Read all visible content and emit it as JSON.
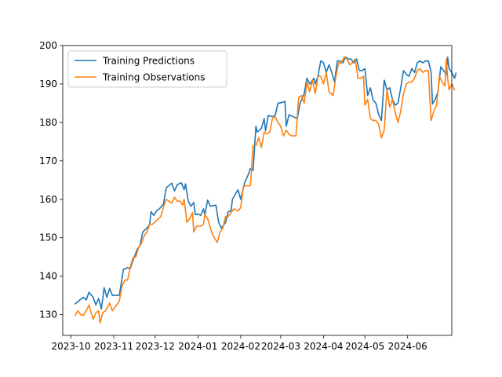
{
  "chart_data": {
    "type": "line",
    "title": "",
    "xlabel": "",
    "ylabel": "",
    "ylim": [
      124.6,
      200.0
    ],
    "xlim": [
      "2023-09-25",
      "2024-07-03"
    ],
    "grid": false,
    "legend_position": "top-left",
    "y_ticks": [
      130,
      140,
      150,
      160,
      170,
      180,
      190,
      200
    ],
    "x_ticks": [
      {
        "date": "2023-10-01",
        "label": "2023-10"
      },
      {
        "date": "2023-11-01",
        "label": "2023-11"
      },
      {
        "date": "2023-12-01",
        "label": "2023-12"
      },
      {
        "date": "2024-01-01",
        "label": "2024-01"
      },
      {
        "date": "2024-02-01",
        "label": "2024-02"
      },
      {
        "date": "2024-03-01",
        "label": "2024-03"
      },
      {
        "date": "2024-04-01",
        "label": "2024-04"
      },
      {
        "date": "2024-05-01",
        "label": "2024-05"
      },
      {
        "date": "2024-06-01",
        "label": "2024-06"
      }
    ],
    "series": [
      {
        "name": "Training Predictions",
        "color": "#1f77b4",
        "points": [
          [
            "2023-10-04",
            132.8
          ],
          [
            "2023-10-08",
            134.0
          ],
          [
            "2023-10-10",
            134.5
          ],
          [
            "2023-10-12",
            133.8
          ],
          [
            "2023-10-14",
            135.8
          ],
          [
            "2023-10-17",
            134.5
          ],
          [
            "2023-10-19",
            132.5
          ],
          [
            "2023-10-21",
            134.2
          ],
          [
            "2023-10-23",
            131.5
          ],
          [
            "2023-10-25",
            137.0
          ],
          [
            "2023-10-27",
            134.5
          ],
          [
            "2023-10-29",
            136.8
          ],
          [
            "2023-10-31",
            135.0
          ],
          [
            "2023-11-02",
            135.0
          ],
          [
            "2023-11-05",
            135.0
          ],
          [
            "2023-11-08",
            141.8
          ],
          [
            "2023-11-11",
            142.2
          ],
          [
            "2023-11-13",
            142.0
          ],
          [
            "2023-11-15",
            144.2
          ],
          [
            "2023-11-18",
            147.0
          ],
          [
            "2023-11-20",
            148.0
          ],
          [
            "2023-11-22",
            151.5
          ],
          [
            "2023-11-25",
            152.5
          ],
          [
            "2023-11-27",
            153.5
          ],
          [
            "2023-11-28",
            156.8
          ],
          [
            "2023-11-30",
            155.8
          ],
          [
            "2023-12-02",
            157.0
          ],
          [
            "2023-12-04",
            157.5
          ],
          [
            "2023-12-07",
            158.8
          ],
          [
            "2023-12-09",
            163.0
          ],
          [
            "2023-12-13",
            164.2
          ],
          [
            "2023-12-15",
            162.2
          ],
          [
            "2023-12-17",
            163.8
          ],
          [
            "2023-12-20",
            164.3
          ],
          [
            "2023-12-22",
            162.5
          ],
          [
            "2023-12-23",
            164.0
          ],
          [
            "2023-12-25",
            159.5
          ],
          [
            "2023-12-27",
            158.2
          ],
          [
            "2023-12-29",
            159.2
          ],
          [
            "2023-12-30",
            156.0
          ],
          [
            "2024-01-01",
            156.2
          ],
          [
            "2024-01-03",
            155.8
          ],
          [
            "2024-01-05",
            157.5
          ],
          [
            "2024-01-06",
            156.0
          ],
          [
            "2024-01-08",
            159.8
          ],
          [
            "2024-01-10",
            158.2
          ],
          [
            "2024-01-14",
            158.5
          ],
          [
            "2024-01-16",
            154.0
          ],
          [
            "2024-01-18",
            152.5
          ],
          [
            "2024-01-21",
            154.0
          ],
          [
            "2024-01-23",
            156.8
          ],
          [
            "2024-01-25",
            157.0
          ],
          [
            "2024-01-26",
            160.0
          ],
          [
            "2024-01-30",
            162.5
          ],
          [
            "2024-02-01",
            160.0
          ],
          [
            "2024-02-04",
            164.5
          ],
          [
            "2024-02-06",
            166.0
          ],
          [
            "2024-02-08",
            168.0
          ],
          [
            "2024-02-10",
            167.5
          ],
          [
            "2024-02-12",
            179.0
          ],
          [
            "2024-02-13",
            177.5
          ],
          [
            "2024-02-16",
            178.5
          ],
          [
            "2024-02-18",
            181.0
          ],
          [
            "2024-02-19",
            177.8
          ],
          [
            "2024-02-21",
            181.8
          ],
          [
            "2024-02-24",
            181.5
          ],
          [
            "2024-02-26",
            181.8
          ],
          [
            "2024-02-28",
            185.0
          ],
          [
            "2024-03-02",
            185.2
          ],
          [
            "2024-03-04",
            185.5
          ],
          [
            "2024-03-05",
            179.0
          ],
          [
            "2024-03-07",
            182.0
          ],
          [
            "2024-03-10",
            181.5
          ],
          [
            "2024-03-13",
            181.0
          ],
          [
            "2024-03-15",
            185.0
          ],
          [
            "2024-03-18",
            187.5
          ],
          [
            "2024-03-20",
            191.5
          ],
          [
            "2024-03-22",
            190.0
          ],
          [
            "2024-03-25",
            191.5
          ],
          [
            "2024-03-26",
            190.0
          ],
          [
            "2024-03-28",
            192.0
          ],
          [
            "2024-03-30",
            196.0
          ],
          [
            "2024-04-01",
            195.5
          ],
          [
            "2024-04-03",
            193.0
          ],
          [
            "2024-04-05",
            195.0
          ],
          [
            "2024-04-07",
            193.0
          ],
          [
            "2024-04-09",
            190.5
          ],
          [
            "2024-04-11",
            196.0
          ],
          [
            "2024-04-13",
            196.0
          ],
          [
            "2024-04-15",
            195.5
          ],
          [
            "2024-04-17",
            197.0
          ],
          [
            "2024-04-19",
            196.5
          ],
          [
            "2024-04-21",
            196.5
          ],
          [
            "2024-04-23",
            195.5
          ],
          [
            "2024-04-25",
            196.5
          ],
          [
            "2024-04-27",
            193.5
          ],
          [
            "2024-04-29",
            193.5
          ],
          [
            "2024-05-01",
            194.0
          ],
          [
            "2024-05-03",
            187.0
          ],
          [
            "2024-05-05",
            189.0
          ],
          [
            "2024-05-07",
            185.8
          ],
          [
            "2024-05-09",
            185.0
          ],
          [
            "2024-05-11",
            182.0
          ],
          [
            "2024-05-13",
            180.5
          ],
          [
            "2024-05-15",
            191.0
          ],
          [
            "2024-05-17",
            188.5
          ],
          [
            "2024-05-19",
            189.0
          ],
          [
            "2024-05-21",
            186.0
          ],
          [
            "2024-05-23",
            184.5
          ],
          [
            "2024-05-25",
            185.0
          ],
          [
            "2024-05-27",
            189.0
          ],
          [
            "2024-05-29",
            193.5
          ],
          [
            "2024-05-31",
            192.5
          ],
          [
            "2024-06-02",
            192.0
          ],
          [
            "2024-06-04",
            194.0
          ],
          [
            "2024-06-06",
            193.0
          ],
          [
            "2024-06-08",
            195.5
          ],
          [
            "2024-06-10",
            196.0
          ],
          [
            "2024-06-12",
            195.5
          ],
          [
            "2024-06-14",
            196.0
          ],
          [
            "2024-06-16",
            196.0
          ],
          [
            "2024-06-18",
            193.0
          ],
          [
            "2024-06-19",
            184.8
          ],
          [
            "2024-06-21",
            186.0
          ],
          [
            "2024-06-23",
            188.0
          ],
          [
            "2024-06-25",
            194.5
          ],
          [
            "2024-06-27",
            193.5
          ],
          [
            "2024-06-29",
            192.5
          ],
          [
            "2024-06-30",
            197.0
          ],
          [
            "2024-07-01",
            194.0
          ],
          [
            "2024-07-03",
            193.0
          ],
          [
            "2024-07-05",
            191.5
          ],
          [
            "2024-07-06",
            192.8
          ]
        ]
      },
      {
        "name": "Training Observations",
        "color": "#ff7f0e",
        "points": [
          [
            "2023-10-04",
            129.8
          ],
          [
            "2023-10-06",
            131.0
          ],
          [
            "2023-10-08",
            130.0
          ],
          [
            "2023-10-10",
            129.8
          ],
          [
            "2023-10-12",
            131.0
          ],
          [
            "2023-10-14",
            132.5
          ],
          [
            "2023-10-17",
            128.8
          ],
          [
            "2023-10-19",
            130.5
          ],
          [
            "2023-10-21",
            131.0
          ],
          [
            "2023-10-22",
            127.8
          ],
          [
            "2023-10-24",
            130.5
          ],
          [
            "2023-10-26",
            131.0
          ],
          [
            "2023-10-29",
            133.0
          ],
          [
            "2023-10-31",
            131.0
          ],
          [
            "2023-11-02",
            132.0
          ],
          [
            "2023-11-05",
            133.5
          ],
          [
            "2023-11-07",
            137.5
          ],
          [
            "2023-11-09",
            139.0
          ],
          [
            "2023-11-11",
            139.0
          ],
          [
            "2023-11-13",
            142.5
          ],
          [
            "2023-11-15",
            144.8
          ],
          [
            "2023-11-17",
            145.0
          ],
          [
            "2023-11-19",
            147.5
          ],
          [
            "2023-11-21",
            148.5
          ],
          [
            "2023-11-23",
            150.5
          ],
          [
            "2023-11-25",
            151.5
          ],
          [
            "2023-11-27",
            153.5
          ],
          [
            "2023-11-29",
            153.5
          ],
          [
            "2023-12-02",
            154.5
          ],
          [
            "2023-12-05",
            155.5
          ],
          [
            "2023-12-07",
            158.0
          ],
          [
            "2023-12-09",
            160.0
          ],
          [
            "2023-12-11",
            159.5
          ],
          [
            "2023-12-13",
            159.0
          ],
          [
            "2023-12-15",
            160.5
          ],
          [
            "2023-12-17",
            159.5
          ],
          [
            "2023-12-19",
            159.5
          ],
          [
            "2023-12-21",
            158.5
          ],
          [
            "2023-12-22",
            160.0
          ],
          [
            "2023-12-24",
            154.0
          ],
          [
            "2023-12-26",
            155.0
          ],
          [
            "2023-12-28",
            156.5
          ],
          [
            "2023-12-29",
            151.5
          ],
          [
            "2023-12-31",
            153.0
          ],
          [
            "2024-01-03",
            153.0
          ],
          [
            "2024-01-05",
            153.5
          ],
          [
            "2024-01-06",
            156.0
          ],
          [
            "2024-01-08",
            155.0
          ],
          [
            "2024-01-10",
            152.5
          ],
          [
            "2024-01-12",
            150.5
          ],
          [
            "2024-01-15",
            148.8
          ],
          [
            "2024-01-17",
            151.5
          ],
          [
            "2024-01-19",
            152.5
          ],
          [
            "2024-01-21",
            155.5
          ],
          [
            "2024-01-23",
            155.5
          ],
          [
            "2024-01-25",
            156.5
          ],
          [
            "2024-01-27",
            157.5
          ],
          [
            "2024-01-30",
            157.0
          ],
          [
            "2024-02-01",
            157.8
          ],
          [
            "2024-02-03",
            163.5
          ],
          [
            "2024-02-06",
            163.5
          ],
          [
            "2024-02-08",
            163.5
          ],
          [
            "2024-02-10",
            174.0
          ],
          [
            "2024-02-12",
            174.0
          ],
          [
            "2024-02-14",
            176.0
          ],
          [
            "2024-02-16",
            173.5
          ],
          [
            "2024-02-18",
            177.5
          ],
          [
            "2024-02-20",
            177.0
          ],
          [
            "2024-02-22",
            177.5
          ],
          [
            "2024-02-24",
            181.0
          ],
          [
            "2024-02-26",
            181.5
          ],
          [
            "2024-02-28",
            180.0
          ],
          [
            "2024-03-01",
            179.0
          ],
          [
            "2024-03-03",
            176.5
          ],
          [
            "2024-03-05",
            178.0
          ],
          [
            "2024-03-07",
            177.0
          ],
          [
            "2024-03-09",
            176.5
          ],
          [
            "2024-03-12",
            176.5
          ],
          [
            "2024-03-14",
            186.5
          ],
          [
            "2024-03-16",
            187.0
          ],
          [
            "2024-03-18",
            185.0
          ],
          [
            "2024-03-20",
            190.5
          ],
          [
            "2024-03-22",
            188.0
          ],
          [
            "2024-03-24",
            191.0
          ],
          [
            "2024-03-26",
            187.5
          ],
          [
            "2024-03-28",
            192.0
          ],
          [
            "2024-03-30",
            192.0
          ],
          [
            "2024-04-01",
            190.0
          ],
          [
            "2024-04-03",
            193.0
          ],
          [
            "2024-04-05",
            188.0
          ],
          [
            "2024-04-08",
            187.0
          ],
          [
            "2024-04-10",
            192.0
          ],
          [
            "2024-04-12",
            195.5
          ],
          [
            "2024-04-14",
            195.5
          ],
          [
            "2024-04-16",
            197.0
          ],
          [
            "2024-04-18",
            196.5
          ],
          [
            "2024-04-20",
            195.0
          ],
          [
            "2024-04-22",
            195.5
          ],
          [
            "2024-04-24",
            196.5
          ],
          [
            "2024-04-26",
            191.5
          ],
          [
            "2024-04-28",
            191.5
          ],
          [
            "2024-04-30",
            192.0
          ],
          [
            "2024-05-01",
            184.5
          ],
          [
            "2024-05-03",
            186.0
          ],
          [
            "2024-05-05",
            181.0
          ],
          [
            "2024-05-07",
            180.5
          ],
          [
            "2024-05-09",
            180.5
          ],
          [
            "2024-05-11",
            179.5
          ],
          [
            "2024-05-13",
            176.0
          ],
          [
            "2024-05-15",
            178.0
          ],
          [
            "2024-05-17",
            188.5
          ],
          [
            "2024-05-19",
            184.0
          ],
          [
            "2024-05-21",
            186.0
          ],
          [
            "2024-05-23",
            182.5
          ],
          [
            "2024-05-25",
            180.0
          ],
          [
            "2024-05-27",
            183.0
          ],
          [
            "2024-05-29",
            187.5
          ],
          [
            "2024-05-31",
            190.0
          ],
          [
            "2024-06-02",
            190.5
          ],
          [
            "2024-06-04",
            190.5
          ],
          [
            "2024-06-06",
            191.5
          ],
          [
            "2024-06-08",
            193.5
          ],
          [
            "2024-06-10",
            194.0
          ],
          [
            "2024-06-12",
            193.0
          ],
          [
            "2024-06-14",
            193.5
          ],
          [
            "2024-06-16",
            193.5
          ],
          [
            "2024-06-18",
            180.5
          ],
          [
            "2024-06-20",
            183.0
          ],
          [
            "2024-06-22",
            184.5
          ],
          [
            "2024-06-24",
            192.0
          ],
          [
            "2024-06-26",
            190.5
          ],
          [
            "2024-06-28",
            189.5
          ],
          [
            "2024-06-29",
            196.5
          ],
          [
            "2024-06-30",
            191.5
          ],
          [
            "2024-07-01",
            188.5
          ],
          [
            "2024-07-03",
            190.0
          ],
          [
            "2024-07-05",
            188.5
          ]
        ]
      }
    ]
  }
}
